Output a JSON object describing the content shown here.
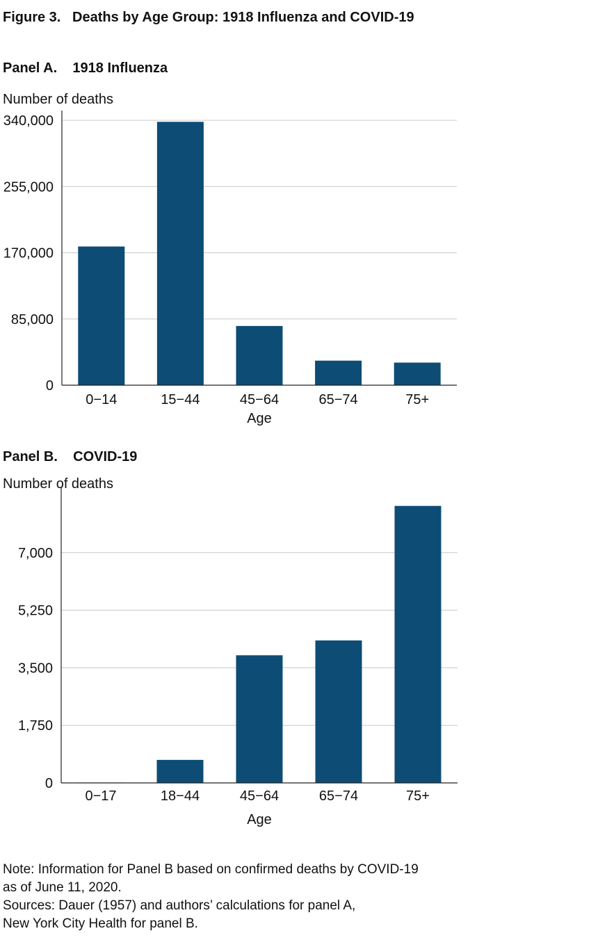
{
  "figure_title": "Figure 3.   Deaths by Age Group: 1918 Influenza and COVID-19",
  "chart_data": [
    {
      "type": "bar",
      "title": "Panel A.    1918 Influenza",
      "ylabel": "Number of deaths",
      "xlabel": "Age",
      "categories": [
        "0−14",
        "15−44",
        "45−64",
        "65−74",
        "75+"
      ],
      "values": [
        178000,
        338000,
        76000,
        31500,
        29000
      ],
      "yticks": [
        0,
        85000,
        170000,
        255000,
        340000
      ],
      "ytick_labels": [
        "0",
        "85,000",
        "170,000",
        "255,000",
        "340,000"
      ],
      "ylim": [
        0,
        340000
      ],
      "grid": true,
      "color": "#0d4c75"
    },
    {
      "type": "bar",
      "title": "Panel B.    COVID-19",
      "ylabel": "Number of deaths",
      "xlabel": "Age",
      "categories": [
        "0−17",
        "18−44",
        "45−64",
        "65−74",
        "75+"
      ],
      "values": [
        12,
        700,
        3880,
        4330,
        8420
      ],
      "yticks": [
        0,
        1750,
        3500,
        5250,
        7000
      ],
      "ytick_labels": [
        "0",
        "1,750",
        "3,500",
        "5,250",
        "7,000"
      ],
      "ylim": [
        0,
        8750
      ],
      "grid": true,
      "color": "#0d4c75"
    }
  ],
  "note": {
    "lines": [
      "Note: Information for Panel B based on confirmed deaths by COVID-19",
      "as of June 11, 2020.",
      "Sources: Dauer (1957) and authors’ calculations for panel A,",
      "New York City Health for panel B."
    ]
  }
}
